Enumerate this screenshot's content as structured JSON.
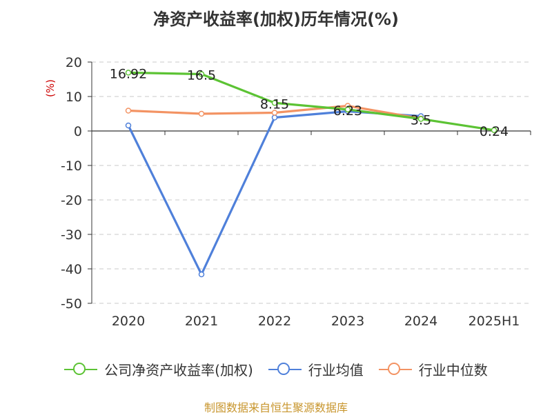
{
  "chart_data": {
    "type": "line",
    "title": "净资产收益率(加权)历年情况(%)",
    "ylabel": "(%)",
    "categories": [
      "2020",
      "2021",
      "2022",
      "2023",
      "2024",
      "2025H1"
    ],
    "ylim": [
      -50,
      20
    ],
    "yticks": [
      20,
      10,
      0,
      -10,
      -20,
      -30,
      -40,
      -50
    ],
    "grid": true,
    "legend_position": "bottom",
    "series": [
      {
        "name": "公司净资产收益率(加权)",
        "color": "#5cc334",
        "values": [
          16.92,
          16.5,
          8.15,
          6.23,
          3.5,
          0.24
        ],
        "labels": [
          "16.92",
          "16.5",
          "8.15",
          "6.23",
          "3.5",
          "0.24"
        ]
      },
      {
        "name": "行业均值",
        "color": "#4f80da",
        "values": [
          1.6,
          -41.6,
          3.9,
          5.7,
          4.3,
          null
        ]
      },
      {
        "name": "行业中位数",
        "color": "#f39363",
        "values": [
          5.9,
          5.0,
          5.3,
          7.3,
          3.6,
          null
        ]
      }
    ]
  },
  "source": "制图数据来自恒生聚源数据库"
}
